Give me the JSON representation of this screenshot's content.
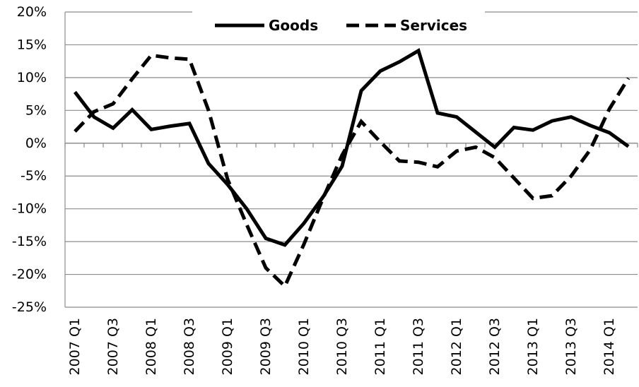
{
  "chart_data": {
    "type": "line",
    "title": "",
    "xlabel": "",
    "ylabel": "",
    "ylim": [
      -25,
      20
    ],
    "y_ticks": [
      20,
      15,
      10,
      5,
      0,
      -5,
      -10,
      -15,
      -20,
      -25
    ],
    "y_tick_labels": [
      "20%",
      "15%",
      "10%",
      "5%",
      "0%",
      "-5%",
      "-10%",
      "-15%",
      "-20%",
      "-25%"
    ],
    "grid": true,
    "legend_position": "top-center",
    "x": [
      "2007 Q1",
      "2007 Q2",
      "2007 Q3",
      "2007 Q4",
      "2008 Q1",
      "2008 Q2",
      "2008 Q3",
      "2008 Q4",
      "2009 Q1",
      "2009 Q2",
      "2009 Q3",
      "2009 Q4",
      "2010 Q1",
      "2010 Q2",
      "2010 Q3",
      "2010 Q4",
      "2011 Q1",
      "2011 Q2",
      "2011 Q3",
      "2011 Q4",
      "2012 Q1",
      "2012 Q2",
      "2012 Q3",
      "2012 Q4",
      "2013 Q1",
      "2013 Q2",
      "2013 Q3",
      "2013 Q4",
      "2014 Q1",
      "2014 Q2"
    ],
    "x_tick_labels": [
      "2007 Q1",
      "2007 Q3",
      "2008 Q1",
      "2008 Q3",
      "2009 Q1",
      "2009 Q3",
      "2010 Q1",
      "2010 Q3",
      "2011 Q1",
      "2011 Q3",
      "2012 Q1",
      "2012 Q3",
      "2013 Q1",
      "2013 Q3",
      "2014 Q1"
    ],
    "series": [
      {
        "name": "Goods",
        "style": "solid",
        "color": "#000000",
        "values": [
          7.8,
          4.0,
          2.3,
          5.1,
          2.1,
          2.6,
          3.0,
          -3.1,
          -6.3,
          -10.0,
          -14.5,
          -15.5,
          -12.2,
          -8.2,
          -3.5,
          8.0,
          11.0,
          12.4,
          14.1,
          4.6,
          4.0,
          1.7,
          -0.6,
          2.4,
          2.0,
          3.4,
          4.0,
          2.7,
          1.6,
          -0.5
        ]
      },
      {
        "name": "Services",
        "style": "dashed",
        "color": "#000000",
        "values": [
          1.8,
          4.8,
          6.0,
          9.8,
          13.4,
          13.0,
          12.8,
          5.0,
          -5.5,
          -12.4,
          -19.0,
          -21.8,
          -15.4,
          -8.4,
          -1.8,
          3.3,
          0.2,
          -2.7,
          -2.9,
          -3.6,
          -1.2,
          -0.6,
          -2.2,
          -5.3,
          -8.4,
          -8.0,
          -5.0,
          -1.0,
          5.2,
          9.9
        ]
      }
    ]
  }
}
